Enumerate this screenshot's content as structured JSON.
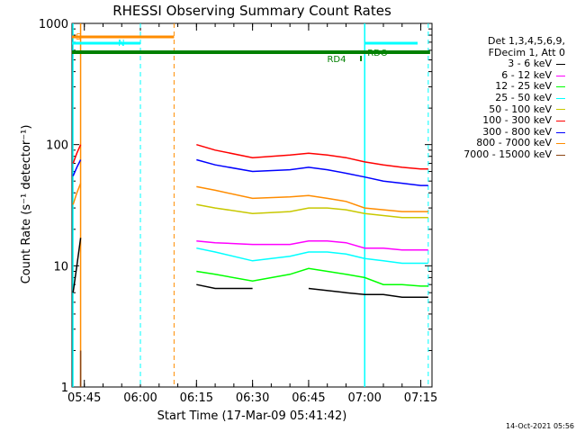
{
  "chart_data": {
    "type": "line",
    "title": "RHESSI Observing Summary Count Rates",
    "xlabel": "Start Time (17-Mar-09 05:41:42)",
    "ylabel": "Count Rate (s⁻¹ detector⁻¹)",
    "yscale": "log",
    "ylim": [
      1,
      1000
    ],
    "y_ticks": [
      "1",
      "10",
      "100",
      "1000"
    ],
    "xlim": [
      "05:41:42",
      "07:18:00"
    ],
    "x_ticks": [
      "05:45",
      "06:00",
      "06:15",
      "06:30",
      "06:45",
      "07:00",
      "07:15"
    ],
    "legend_header": [
      "Det 1,3,4,5,6,9,",
      "FDecim 1, Att 0"
    ],
    "legend_placement": "right, outside plot",
    "series": [
      {
        "name": "3 - 6 keV",
        "color": "#000000",
        "x": [
          "05:42",
          "05:43",
          "05:44",
          "06:15",
          "06:20",
          "06:30",
          "06:45",
          "06:55",
          "07:00",
          "07:05",
          "07:10",
          "07:15",
          "07:17"
        ],
        "y": [
          6,
          10,
          17,
          7,
          6.5,
          6.5,
          6.5,
          6,
          5.8,
          5.8,
          5.5,
          5.5,
          5.5
        ]
      },
      {
        "name": "6 - 12 keV",
        "color": "#ff00ff",
        "x": [
          "06:15",
          "06:20",
          "06:30",
          "06:40",
          "06:45",
          "06:50",
          "06:55",
          "07:00",
          "07:05",
          "07:10",
          "07:15",
          "07:17"
        ],
        "y": [
          16,
          15.5,
          15,
          15,
          16,
          16,
          15.5,
          14,
          14,
          13.5,
          13.5,
          13.5
        ]
      },
      {
        "name": "12 - 25 keV",
        "color": "#00ff00",
        "x": [
          "06:15",
          "06:20",
          "06:30",
          "06:40",
          "06:45",
          "06:50",
          "06:55",
          "07:00",
          "07:05",
          "07:10",
          "07:15",
          "07:17"
        ],
        "y": [
          9,
          8.5,
          7.5,
          8.5,
          9.5,
          9,
          8.5,
          8,
          7,
          7,
          6.8,
          6.8
        ]
      },
      {
        "name": "25 - 50 keV",
        "color": "#00ffff",
        "x": [
          "06:15",
          "06:20",
          "06:30",
          "06:40",
          "06:45",
          "06:50",
          "06:55",
          "07:00",
          "07:05",
          "07:10",
          "07:15",
          "07:17"
        ],
        "y": [
          14,
          13,
          11,
          12,
          13,
          13,
          12.5,
          11.5,
          11,
          10.5,
          10.5,
          10.5
        ]
      },
      {
        "name": "50 - 100 keV",
        "color": "#c8c800",
        "x": [
          "06:15",
          "06:20",
          "06:30",
          "06:40",
          "06:45",
          "06:50",
          "06:55",
          "07:00",
          "07:05",
          "07:10",
          "07:15",
          "07:17"
        ],
        "y": [
          32,
          30,
          27,
          28,
          30,
          30,
          29,
          27,
          26,
          25,
          25,
          25
        ]
      },
      {
        "name": "100 - 300 keV",
        "color": "#ff0000",
        "x": [
          "05:42",
          "05:43",
          "05:44",
          "06:15",
          "06:20",
          "06:30",
          "06:40",
          "06:45",
          "06:50",
          "06:55",
          "07:00",
          "07:05",
          "07:10",
          "07:15",
          "07:17"
        ],
        "y": [
          70,
          85,
          100,
          100,
          90,
          78,
          82,
          85,
          82,
          78,
          72,
          68,
          65,
          63,
          63
        ]
      },
      {
        "name": "300 - 800 keV",
        "color": "#0000ff",
        "x": [
          "05:42",
          "05:43",
          "05:44",
          "06:15",
          "06:20",
          "06:30",
          "06:40",
          "06:45",
          "06:50",
          "06:55",
          "07:00",
          "07:05",
          "07:10",
          "07:15",
          "07:17"
        ],
        "y": [
          55,
          65,
          75,
          75,
          68,
          60,
          62,
          65,
          62,
          58,
          54,
          50,
          48,
          46,
          46
        ]
      },
      {
        "name": "800 - 7000 keV",
        "color": "#ff8c00",
        "x": [
          "05:42",
          "05:43",
          "05:44",
          "06:15",
          "06:20",
          "06:30",
          "06:40",
          "06:45",
          "06:50",
          "06:55",
          "07:00",
          "07:05",
          "07:10",
          "07:15",
          "07:17"
        ],
        "y": [
          32,
          40,
          48,
          45,
          42,
          36,
          37,
          38,
          36,
          34,
          30,
          29,
          28,
          28,
          28
        ]
      },
      {
        "name": "7000 - 15000 keV",
        "color": "#8b4513",
        "x": [
          "05:44",
          "05:44"
        ],
        "y": [
          1,
          2
        ]
      }
    ],
    "annotations": [
      {
        "label": "S",
        "color": "#ff8c00"
      },
      {
        "label": "N",
        "color": "#00ffff"
      },
      {
        "label": "RD4",
        "color": "#008000"
      },
      {
        "label": "RDO",
        "color": "#008000"
      }
    ],
    "colors": {
      "axes": "#000000",
      "cyan": "#00ffff",
      "orange": "#ff8c00",
      "green": "#008000"
    }
  },
  "footer": {
    "timestamp": "14-Oct-2021 05:56"
  }
}
